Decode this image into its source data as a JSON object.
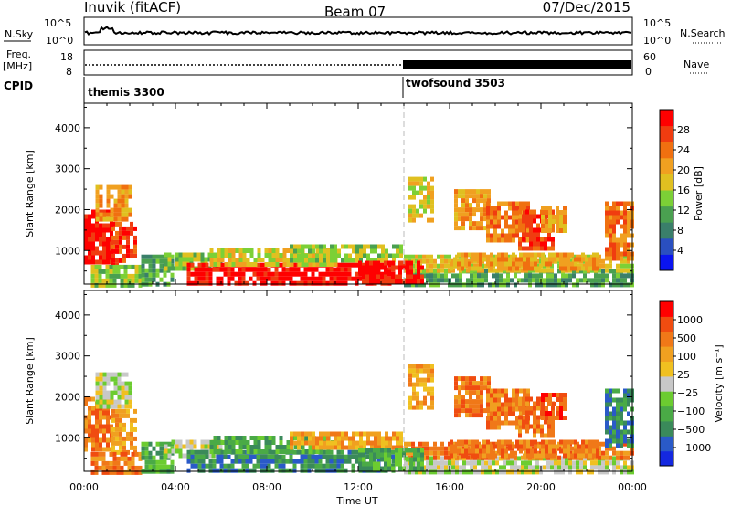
{
  "header": {
    "station": "Inuvik (fitACF)",
    "beam": "Beam 07",
    "date": "07/Dec/2015"
  },
  "strips": {
    "nsky_label": "N.Sky",
    "nsearch_label": "N.Search",
    "nsky_ticks": [
      "10^5",
      "10^0"
    ],
    "nsearch_ticks": [
      "10^5",
      "10^0"
    ],
    "freq_label_1": "Freq.",
    "freq_label_2": "[MHz]",
    "freq_ticks": [
      "18",
      "8"
    ],
    "nave_label": "Nave",
    "nave_ticks": [
      "60",
      "0"
    ],
    "cpid_label": "CPID",
    "cpid_modes": [
      {
        "name": "themis 3300",
        "start_hour": 0
      },
      {
        "name": "twofsound 3503",
        "start_hour": 14
      }
    ]
  },
  "chart_data": [
    {
      "type": "heatmap",
      "name": "power",
      "xlabel": "",
      "ylabel": "Slant Range [km]",
      "xlim_hours": [
        0,
        24
      ],
      "ylim": [
        180,
        4600
      ],
      "xticks": [
        "00:00",
        "04:00",
        "08:00",
        "12:00",
        "16:00",
        "20:00",
        "00:00"
      ],
      "yticks": [
        1000,
        2000,
        3000,
        4000
      ],
      "colorbar": {
        "label": "Power [dB]",
        "ticks": [
          "4",
          "8",
          "12",
          "16",
          "20",
          "24",
          "28"
        ],
        "colors": [
          "#0a14f0",
          "#2a4fc0",
          "#3a7f6a",
          "#4aa050",
          "#7cd036",
          "#e0c020",
          "#f0a020",
          "#f07010",
          "#f03c10",
          "#ff0000"
        ]
      },
      "regions": [
        {
          "t0": 0.0,
          "t1": 1.2,
          "r0": 700,
          "r1": 2000,
          "level": 9
        },
        {
          "t0": 0.5,
          "t1": 2.0,
          "r0": 1800,
          "r1": 2600,
          "level": 6
        },
        {
          "t0": 1.2,
          "t1": 2.2,
          "r0": 600,
          "r1": 1700,
          "level": 8
        },
        {
          "t0": 0.3,
          "t1": 2.5,
          "r0": 200,
          "r1": 650,
          "level": 4
        },
        {
          "t0": 2.5,
          "t1": 3.8,
          "r0": 200,
          "r1": 900,
          "level": 3
        },
        {
          "t0": 3.5,
          "t1": 6.0,
          "r0": 600,
          "r1": 950,
          "level": 4
        },
        {
          "t0": 4.5,
          "t1": 13.5,
          "r0": 200,
          "r1": 700,
          "level": 9
        },
        {
          "t0": 5.5,
          "t1": 11.0,
          "r0": 700,
          "r1": 1050,
          "level": 5
        },
        {
          "t0": 9.0,
          "t1": 13.8,
          "r0": 750,
          "r1": 1150,
          "level": 4
        },
        {
          "t0": 14.0,
          "t1": 24.0,
          "r0": 200,
          "r1": 550,
          "level": 3
        },
        {
          "t0": 14.0,
          "t1": 24.0,
          "r0": 500,
          "r1": 900,
          "level": 5
        },
        {
          "t0": 12.0,
          "t1": 14.8,
          "r0": 300,
          "r1": 750,
          "level": 9
        },
        {
          "t0": 16.0,
          "t1": 22.5,
          "r0": 550,
          "r1": 950,
          "level": 6
        },
        {
          "t0": 14.2,
          "t1": 15.3,
          "r0": 1700,
          "r1": 2800,
          "level": 5
        },
        {
          "t0": 16.2,
          "t1": 17.8,
          "r0": 1500,
          "r1": 2500,
          "level": 6
        },
        {
          "t0": 17.6,
          "t1": 19.5,
          "r0": 1300,
          "r1": 2200,
          "level": 7
        },
        {
          "t0": 19.0,
          "t1": 20.5,
          "r0": 1000,
          "r1": 2000,
          "level": 8
        },
        {
          "t0": 20.0,
          "t1": 21.0,
          "r0": 1500,
          "r1": 2100,
          "level": 6
        },
        {
          "t0": 22.8,
          "t1": 24.0,
          "r0": 800,
          "r1": 2200,
          "level": 7
        }
      ]
    },
    {
      "type": "heatmap",
      "name": "velocity",
      "xlabel": "Time UT",
      "ylabel": "Slant Range [km]",
      "xlim_hours": [
        0,
        24
      ],
      "ylim": [
        180,
        4600
      ],
      "xticks": [
        "00:00",
        "04:00",
        "08:00",
        "12:00",
        "16:00",
        "20:00",
        "00:00"
      ],
      "yticks": [
        1000,
        2000,
        3000,
        4000
      ],
      "colorbar": {
        "label": "Velocity [m s⁻¹]",
        "ticks": [
          "1000",
          "500",
          "100",
          "25",
          "−25",
          "−100",
          "−500",
          "−1000"
        ],
        "colors": [
          "#1428e0",
          "#2a5ac8",
          "#3a8a5a",
          "#4aaa46",
          "#6ccc30",
          "#c8c8c8",
          "#f0c020",
          "#f0a020",
          "#f07818",
          "#f04c10",
          "#ff0000"
        ]
      },
      "regions": [
        {
          "t0": 0.0,
          "t1": 1.2,
          "r0": 700,
          "r1": 2000,
          "level": 8
        },
        {
          "t0": 0.5,
          "t1": 2.0,
          "r0": 1800,
          "r1": 2600,
          "level": 5
        },
        {
          "t0": 1.2,
          "t1": 2.2,
          "r0": 600,
          "r1": 1700,
          "level": 7
        },
        {
          "t0": 0.3,
          "t1": 2.5,
          "r0": 200,
          "r1": 650,
          "level": 8
        },
        {
          "t0": 2.5,
          "t1": 3.8,
          "r0": 200,
          "r1": 900,
          "level": 3
        },
        {
          "t0": 3.5,
          "t1": 6.0,
          "r0": 600,
          "r1": 950,
          "level": 5
        },
        {
          "t0": 4.5,
          "t1": 13.5,
          "r0": 200,
          "r1": 700,
          "level": 2
        },
        {
          "t0": 5.5,
          "t1": 11.0,
          "r0": 700,
          "r1": 1050,
          "level": 3
        },
        {
          "t0": 9.0,
          "t1": 13.8,
          "r0": 750,
          "r1": 1150,
          "level": 7
        },
        {
          "t0": 14.0,
          "t1": 24.0,
          "r0": 200,
          "r1": 550,
          "level": 5
        },
        {
          "t0": 14.0,
          "t1": 24.0,
          "r0": 500,
          "r1": 900,
          "level": 8
        },
        {
          "t0": 12.0,
          "t1": 14.8,
          "r0": 300,
          "r1": 750,
          "level": 3
        },
        {
          "t0": 16.0,
          "t1": 22.5,
          "r0": 550,
          "r1": 950,
          "level": 8
        },
        {
          "t0": 14.2,
          "t1": 15.3,
          "r0": 1700,
          "r1": 2800,
          "level": 7
        },
        {
          "t0": 16.2,
          "t1": 17.8,
          "r0": 1500,
          "r1": 2500,
          "level": 8
        },
        {
          "t0": 17.6,
          "t1": 19.5,
          "r0": 1300,
          "r1": 2200,
          "level": 8
        },
        {
          "t0": 19.0,
          "t1": 20.5,
          "r0": 1000,
          "r1": 2000,
          "level": 8
        },
        {
          "t0": 20.0,
          "t1": 21.0,
          "r0": 1500,
          "r1": 2100,
          "level": 9
        },
        {
          "t0": 22.8,
          "t1": 24.0,
          "r0": 800,
          "r1": 2200,
          "level": 2
        }
      ]
    }
  ]
}
